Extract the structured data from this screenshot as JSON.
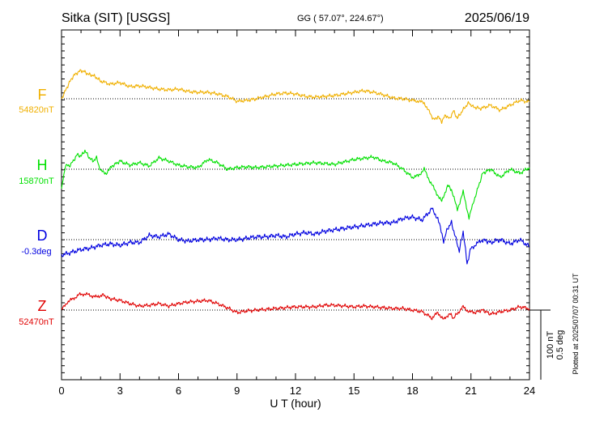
{
  "header": {
    "station": "Sitka (SIT)  [USGS]",
    "coords": "GG ( 57.07°, 224.67°)",
    "date": "2025/06/19"
  },
  "side_note": "Plotted at 2025/07/07 00:31 UT",
  "scale_bar": {
    "nt_label": "100 nT",
    "deg_label": "0.5 deg"
  },
  "chart_data": {
    "type": "line",
    "xlabel": "U T (hour)",
    "xlim": [
      0,
      24
    ],
    "xticks": [
      0,
      3,
      6,
      9,
      12,
      15,
      18,
      21,
      24
    ],
    "grid": false,
    "series": [
      {
        "name": "F",
        "baseline_label": "54820nT",
        "color": "#f0b000",
        "units": "nT offset from baseline",
        "x": [
          0,
          0.2,
          0.4,
          0.6,
          0.8,
          1.0,
          1.2,
          1.4,
          1.6,
          1.8,
          2.0,
          2.5,
          3.0,
          3.5,
          4.0,
          4.5,
          5.0,
          5.5,
          6.0,
          6.5,
          7.0,
          7.5,
          8.0,
          8.5,
          9.0,
          9.5,
          10.0,
          10.5,
          11.0,
          11.5,
          12.0,
          12.5,
          13.0,
          13.5,
          14.0,
          14.5,
          15.0,
          15.5,
          16.0,
          16.5,
          17.0,
          17.5,
          18.0,
          18.3,
          18.6,
          18.9,
          19.1,
          19.3,
          19.5,
          19.7,
          19.9,
          20.1,
          20.3,
          20.5,
          20.7,
          20.9,
          21.1,
          21.5,
          22.0,
          22.5,
          23.0,
          23.5,
          24.0
        ],
        "y": [
          0,
          10,
          20,
          28,
          32,
          35,
          33,
          30,
          29,
          26,
          22,
          18,
          20,
          15,
          16,
          14,
          12,
          11,
          12,
          9,
          8,
          8,
          6,
          3,
          -3,
          -2,
          0,
          3,
          6,
          7,
          6,
          3,
          2,
          3,
          4,
          6,
          8,
          10,
          8,
          5,
          1,
          0,
          -2,
          -3,
          -5,
          -18,
          -26,
          -22,
          -28,
          -20,
          -25,
          -15,
          -24,
          -17,
          -10,
          -5,
          -10,
          -12,
          -8,
          -14,
          -8,
          -2,
          -4
        ]
      },
      {
        "name": "H",
        "baseline_label": "15870nT",
        "color": "#00e000",
        "units": "nT offset from baseline",
        "x": [
          0,
          0.2,
          0.4,
          0.6,
          0.8,
          1.0,
          1.2,
          1.4,
          1.6,
          1.8,
          2.0,
          2.3,
          2.6,
          3.0,
          3.5,
          4.0,
          4.5,
          5.0,
          5.5,
          6.0,
          6.5,
          7.0,
          7.5,
          8.0,
          8.5,
          9.0,
          9.5,
          10.0,
          11.0,
          12.0,
          13.0,
          14.0,
          15.0,
          16.0,
          16.5,
          17.0,
          17.5,
          18.0,
          18.3,
          18.6,
          18.9,
          19.2,
          19.5,
          19.8,
          20.0,
          20.3,
          20.6,
          20.9,
          21.2,
          21.6,
          22.0,
          22.5,
          23.0,
          23.5,
          24.0
        ],
        "y": [
          -25,
          5,
          4,
          10,
          18,
          16,
          23,
          15,
          10,
          14,
          -2,
          -5,
          4,
          10,
          5,
          8,
          4,
          14,
          10,
          5,
          3,
          2,
          12,
          8,
          0,
          2,
          3,
          2,
          4,
          6,
          8,
          6,
          12,
          15,
          10,
          8,
          0,
          -10,
          -8,
          0,
          -15,
          -28,
          -40,
          -20,
          -25,
          -50,
          -28,
          -60,
          -35,
          -5,
          0,
          -10,
          0,
          -5,
          2
        ]
      },
      {
        "name": "D",
        "baseline_label": "-0.3deg",
        "color": "#0000e0",
        "units": "deg offset from baseline",
        "x": [
          0,
          0.5,
          1.0,
          1.5,
          2.0,
          2.5,
          3.0,
          3.5,
          4.0,
          4.5,
          5.0,
          5.5,
          6.0,
          6.5,
          7.0,
          7.5,
          8.0,
          8.5,
          9.0,
          9.5,
          10.0,
          10.5,
          11.0,
          11.5,
          12.0,
          12.5,
          13.0,
          13.5,
          14.0,
          14.5,
          15.0,
          15.5,
          16.0,
          16.5,
          17.0,
          17.5,
          18.0,
          18.5,
          19.0,
          19.3,
          19.6,
          19.8,
          20.0,
          20.2,
          20.4,
          20.6,
          20.8,
          21.0,
          21.3,
          21.6,
          22.0,
          22.5,
          23.0,
          23.5,
          24.0
        ],
        "y": [
          -0.11,
          -0.09,
          -0.07,
          -0.06,
          -0.04,
          -0.03,
          -0.04,
          -0.02,
          -0.02,
          0.03,
          0.02,
          0.04,
          0.0,
          -0.01,
          0.0,
          0.0,
          0.01,
          0.0,
          0.0,
          0.01,
          0.02,
          0.02,
          0.03,
          0.02,
          0.04,
          0.05,
          0.04,
          0.06,
          0.07,
          0.08,
          0.09,
          0.1,
          0.11,
          0.12,
          0.12,
          0.15,
          0.16,
          0.14,
          0.22,
          0.15,
          -0.01,
          0.08,
          0.12,
          0.02,
          -0.08,
          0.06,
          -0.17,
          -0.06,
          -0.03,
          0.0,
          -0.02,
          0.0,
          -0.03,
          0.0,
          -0.05
        ]
      },
      {
        "name": "Z",
        "baseline_label": "52470nT",
        "color": "#e00000",
        "units": "nT offset from baseline",
        "x": [
          0,
          0.3,
          0.6,
          0.9,
          1.2,
          1.5,
          1.8,
          2.1,
          2.5,
          3.0,
          3.5,
          4.0,
          4.5,
          5.0,
          5.5,
          6.0,
          6.5,
          7.0,
          7.5,
          8.0,
          8.5,
          9.0,
          9.5,
          10.0,
          11.0,
          12.0,
          13.0,
          13.5,
          14.0,
          14.5,
          15.0,
          15.5,
          16.0,
          16.5,
          17.0,
          17.5,
          18.0,
          18.5,
          19.0,
          19.3,
          19.6,
          19.9,
          20.1,
          20.3,
          20.6,
          20.9,
          21.2,
          21.6,
          22.0,
          22.5,
          23.0,
          23.5,
          24.0
        ],
        "y": [
          0,
          10,
          14,
          19,
          20,
          18,
          16,
          19,
          14,
          12,
          8,
          5,
          6,
          8,
          5,
          8,
          10,
          11,
          12,
          8,
          3,
          -3,
          -1,
          0,
          2,
          4,
          4,
          6,
          6,
          5,
          4,
          5,
          4,
          3,
          2,
          2,
          0,
          -2,
          -10,
          -3,
          -12,
          -4,
          -10,
          -4,
          4,
          -2,
          -3,
          0,
          -5,
          -2,
          0,
          4,
          2
        ]
      }
    ]
  }
}
